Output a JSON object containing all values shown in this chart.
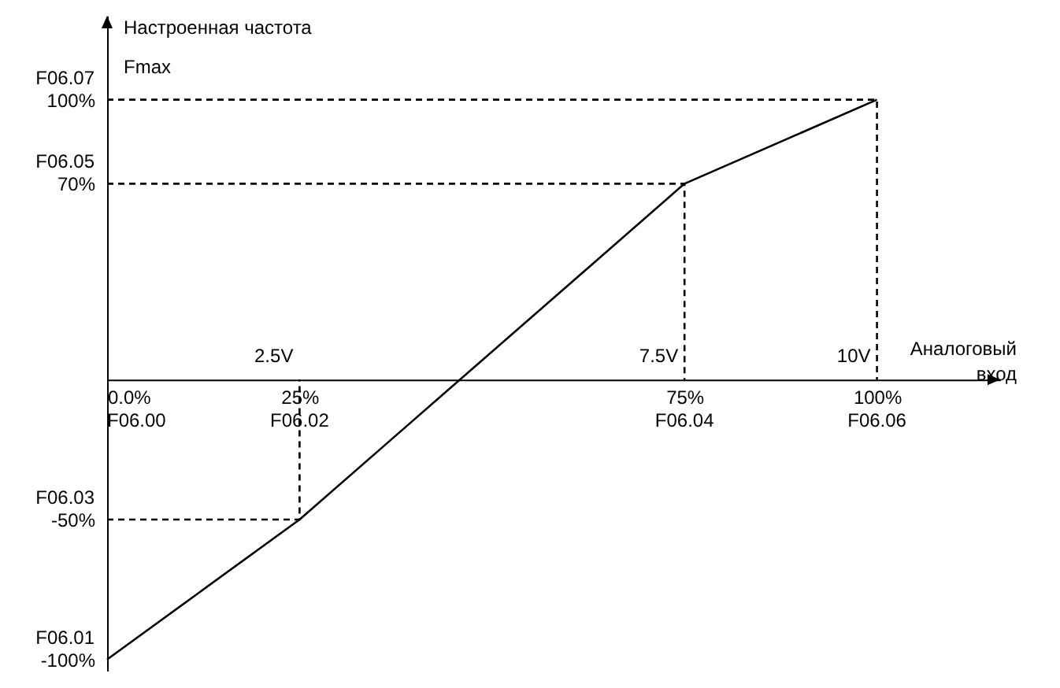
{
  "chart_data": {
    "type": "line",
    "xlabel": "Аналоговый вход",
    "ylabel": "Настроенная частота",
    "annotations": [
      "Fmax",
      "F06.00",
      "F06.02",
      "F06.04",
      "F06.06",
      "F06.01",
      "F06.03",
      "F06.05",
      "F06.07",
      {
        "text": "2.5V",
        "x": 25,
        "y": 0
      },
      {
        "text": "7.5V",
        "x": 75,
        "y": 0
      },
      {
        "text": "10V",
        "x": 100,
        "y": 0
      }
    ],
    "xlim": [
      0,
      116
    ],
    "ylim": [
      -104,
      130
    ],
    "xticks": [
      {
        "value": 0,
        "label": "0.0%"
      },
      {
        "value": 25,
        "label": "25%"
      },
      {
        "value": 75,
        "label": "75%"
      },
      {
        "value": 100,
        "label": "100%"
      }
    ],
    "yticks": [
      {
        "value": -100,
        "label": "-100%"
      },
      {
        "value": -50,
        "label": "-50%"
      },
      {
        "value": 70,
        "label": "70%"
      },
      {
        "value": 100,
        "label": "100%"
      }
    ],
    "grid": false,
    "marker": "none",
    "series": [
      {
        "type": "line",
        "line_style": "solid",
        "color": "#000000",
        "x": [
          0,
          25,
          75,
          100
        ],
        "values": [
          -100,
          -50,
          70,
          100
        ]
      },
      {
        "type": "line",
        "line_style": "dashed",
        "color": "#000000",
        "x": [
          0,
          25,
          25
        ],
        "values": [
          -50,
          -50,
          0
        ]
      },
      {
        "type": "line",
        "line_style": "dashed",
        "color": "#000000",
        "x": [
          0,
          75,
          75
        ],
        "values": [
          70,
          70,
          0
        ]
      },
      {
        "type": "line",
        "line_style": "dashed",
        "color": "#000000",
        "x": [
          0,
          100,
          100
        ],
        "values": [
          100,
          100,
          0
        ]
      }
    ]
  }
}
